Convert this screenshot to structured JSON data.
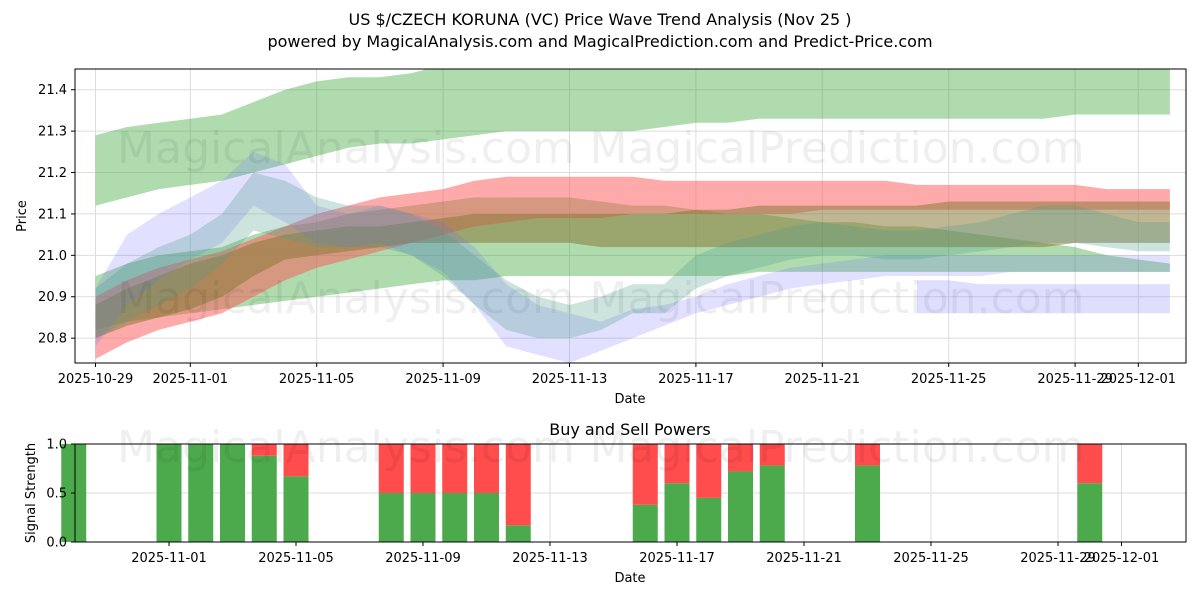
{
  "title": "US $/CZECH KORUNA (VC) Price Wave Trend Analysis (Nov 25 )",
  "subtitle": "powered by MagicalAnalysis.com and MagicalPrediction.com and Predict-Price.com",
  "watermarks": [
    "MagicalAnalysis.com",
    "MagicalPrediction.com"
  ],
  "chart_data": [
    {
      "type": "area",
      "title": "",
      "xlabel": "Date",
      "ylabel": "Price",
      "xlim": [
        "2025-10-28.6",
        "2025-12-02.7"
      ],
      "ylim": [
        20.74,
        21.45
      ],
      "xticks": [
        "2025-10-29",
        "2025-11-01",
        "2025-11-05",
        "2025-11-09",
        "2025-11-13",
        "2025-11-17",
        "2025-11-21",
        "2025-11-25",
        "2025-11-29",
        "2025-12-01"
      ],
      "yticks": [
        20.8,
        20.9,
        21.0,
        21.1,
        21.2,
        21.3,
        21.4
      ],
      "grid": true,
      "colors": {
        "green": "#2ca02c",
        "red": "#ff5555",
        "brown": "#8b7a3a",
        "blue": "#6a6aff",
        "teal": "#4a9a8a"
      },
      "series": [
        {
          "name": "green-upper",
          "color": "#2ca02c",
          "opacity": 0.38,
          "x": [
            0,
            1,
            2,
            3,
            4,
            5,
            6,
            7,
            8,
            9,
            10,
            11,
            12,
            13,
            14,
            15,
            16,
            17,
            18,
            19,
            20,
            21,
            22,
            23,
            24,
            25,
            26,
            27,
            28,
            29,
            30,
            31,
            32,
            33,
            34
          ],
          "upper": [
            21.29,
            21.31,
            21.32,
            21.33,
            21.34,
            21.37,
            21.4,
            21.42,
            21.43,
            21.43,
            21.44,
            21.46,
            21.47,
            21.47,
            21.47,
            21.47,
            21.47,
            21.47,
            21.47,
            21.47,
            21.47,
            21.47,
            21.47,
            21.47,
            21.47,
            21.47,
            21.47,
            21.47,
            21.47,
            21.47,
            21.47,
            21.47,
            21.46,
            21.45,
            21.45
          ],
          "lower": [
            21.12,
            21.14,
            21.16,
            21.17,
            21.18,
            21.2,
            21.22,
            21.24,
            21.26,
            21.27,
            21.27,
            21.28,
            21.29,
            21.3,
            21.3,
            21.3,
            21.3,
            21.3,
            21.31,
            21.32,
            21.32,
            21.33,
            21.33,
            21.33,
            21.33,
            21.33,
            21.33,
            21.33,
            21.33,
            21.33,
            21.33,
            21.34,
            21.34,
            21.34,
            21.34
          ]
        },
        {
          "name": "green-lower",
          "color": "#2ca02c",
          "opacity": 0.38,
          "x": [
            0,
            1,
            2,
            3,
            4,
            5,
            6,
            7,
            8,
            9,
            10,
            11,
            12,
            13,
            14,
            15,
            16,
            17,
            18,
            19,
            20,
            21,
            22,
            23,
            24,
            25,
            26,
            27,
            28,
            29,
            30,
            31,
            32,
            33,
            34
          ],
          "upper": [
            20.95,
            20.98,
            21.0,
            21.01,
            21.02,
            21.05,
            21.07,
            21.08,
            21.1,
            21.11,
            21.12,
            21.13,
            21.14,
            21.14,
            21.14,
            21.14,
            21.13,
            21.12,
            21.12,
            21.11,
            21.1,
            21.1,
            21.09,
            21.08,
            21.08,
            21.07,
            21.07,
            21.06,
            21.05,
            21.04,
            21.03,
            21.02,
            21.0,
            20.99,
            20.98
          ],
          "lower": [
            20.82,
            20.84,
            20.85,
            20.86,
            20.87,
            20.88,
            20.89,
            20.9,
            20.91,
            20.92,
            20.93,
            20.94,
            20.94,
            20.95,
            20.95,
            20.95,
            20.95,
            20.95,
            20.95,
            20.95,
            20.95,
            20.96,
            20.96,
            20.96,
            20.96,
            20.96,
            20.96,
            20.96,
            20.96,
            20.96,
            20.96,
            20.96,
            20.96,
            20.96,
            20.96
          ]
        },
        {
          "name": "red",
          "color": "#ff5555",
          "opacity": 0.5,
          "x": [
            0,
            1,
            2,
            3,
            4,
            5,
            6,
            7,
            8,
            9,
            10,
            11,
            12,
            13,
            14,
            15,
            16,
            17,
            18,
            19,
            20,
            21,
            22,
            23,
            24,
            25,
            26,
            27,
            28,
            29,
            30,
            31,
            32,
            33,
            34
          ],
          "upper": [
            20.9,
            20.94,
            20.97,
            20.99,
            21.01,
            21.04,
            21.07,
            21.1,
            21.12,
            21.14,
            21.15,
            21.16,
            21.18,
            21.19,
            21.19,
            21.19,
            21.19,
            21.19,
            21.18,
            21.18,
            21.18,
            21.18,
            21.18,
            21.18,
            21.18,
            21.18,
            21.17,
            21.17,
            21.17,
            21.17,
            21.17,
            21.17,
            21.16,
            21.16,
            21.16
          ],
          "lower": [
            20.75,
            20.79,
            20.82,
            20.84,
            20.86,
            20.9,
            20.94,
            20.97,
            20.99,
            21.01,
            21.03,
            21.05,
            21.07,
            21.08,
            21.09,
            21.09,
            21.09,
            21.1,
            21.1,
            21.1,
            21.1,
            21.1,
            21.1,
            21.11,
            21.11,
            21.11,
            21.11,
            21.11,
            21.11,
            21.11,
            21.11,
            21.11,
            21.11,
            21.11,
            21.11
          ]
        },
        {
          "name": "brown",
          "color": "#8b7a3a",
          "opacity": 0.55,
          "x": [
            0,
            1,
            2,
            3,
            4,
            5,
            6,
            7,
            8,
            9,
            10,
            11,
            12,
            13,
            14,
            15,
            16,
            17,
            18,
            19,
            20,
            21,
            22,
            23,
            24,
            25,
            26,
            27,
            28,
            29,
            30,
            31,
            32,
            33,
            34
          ],
          "upper": [
            20.88,
            20.92,
            20.95,
            20.98,
            21.0,
            21.03,
            21.05,
            21.06,
            21.07,
            21.07,
            21.08,
            21.09,
            21.1,
            21.1,
            21.1,
            21.1,
            21.1,
            21.1,
            21.1,
            21.11,
            21.11,
            21.12,
            21.12,
            21.12,
            21.12,
            21.12,
            21.12,
            21.13,
            21.13,
            21.13,
            21.13,
            21.13,
            21.13,
            21.13,
            21.13
          ],
          "lower": [
            20.8,
            20.83,
            20.85,
            20.87,
            20.9,
            20.95,
            20.99,
            21.0,
            21.01,
            21.02,
            21.03,
            21.03,
            21.03,
            21.03,
            21.03,
            21.03,
            21.02,
            21.02,
            21.02,
            21.02,
            21.02,
            21.02,
            21.02,
            21.02,
            21.02,
            21.02,
            21.02,
            21.02,
            21.02,
            21.02,
            21.02,
            21.03,
            21.03,
            21.03,
            21.03
          ]
        },
        {
          "name": "blue-wave",
          "color": "#6a6aff",
          "opacity": 0.2,
          "x": [
            0,
            1,
            2,
            3,
            4,
            5,
            6,
            7,
            8,
            9,
            10,
            11,
            12,
            13,
            14,
            15,
            16,
            17,
            18,
            19,
            20,
            21,
            22,
            23,
            24,
            25,
            26,
            27,
            28,
            29,
            30,
            31,
            32,
            33,
            34
          ],
          "upper": [
            20.92,
            21.05,
            21.1,
            21.14,
            21.18,
            21.25,
            21.22,
            21.12,
            21.1,
            21.12,
            21.1,
            21.08,
            21.02,
            20.93,
            20.88,
            20.86,
            20.84,
            20.87,
            20.88,
            20.9,
            20.93,
            20.95,
            20.97,
            20.98,
            20.99,
            21.0,
            21.0,
            21.0,
            21.0,
            21.0,
            21.0,
            21.0,
            21.0,
            21.0,
            21.0
          ],
          "lower": [
            20.78,
            20.88,
            20.94,
            20.99,
            21.03,
            21.12,
            21.08,
            21.03,
            21.02,
            21.03,
            21.0,
            20.96,
            20.88,
            20.78,
            20.76,
            20.74,
            20.77,
            20.8,
            20.83,
            20.86,
            20.88,
            20.9,
            20.92,
            20.93,
            20.94,
            20.95,
            20.95,
            20.95,
            20.95,
            20.96,
            20.96,
            20.96,
            20.96,
            20.96,
            20.96
          ]
        },
        {
          "name": "blue-flat",
          "color": "#6a6aff",
          "opacity": 0.22,
          "x": [
            26,
            27,
            28,
            29,
            30,
            31,
            32,
            33,
            34
          ],
          "upper": [
            20.94,
            20.94,
            20.93,
            20.93,
            20.93,
            20.93,
            20.93,
            20.93,
            20.93
          ],
          "lower": [
            20.86,
            20.86,
            20.86,
            20.86,
            20.86,
            20.86,
            20.86,
            20.86,
            20.86
          ]
        },
        {
          "name": "teal-wave",
          "color": "#4a9a8a",
          "opacity": 0.28,
          "x": [
            0,
            1,
            2,
            3,
            4,
            5,
            6,
            7,
            8,
            9,
            10,
            11,
            12,
            13,
            14,
            15,
            16,
            17,
            18,
            19,
            20,
            21,
            22,
            23,
            24,
            25,
            26,
            27,
            28,
            29,
            30,
            31,
            32,
            33,
            34
          ],
          "upper": [
            20.92,
            20.98,
            21.02,
            21.05,
            21.1,
            21.2,
            21.18,
            21.14,
            21.12,
            21.12,
            21.1,
            21.06,
            21.0,
            20.94,
            20.9,
            20.88,
            20.9,
            20.93,
            20.93,
            21.0,
            21.03,
            21.05,
            21.07,
            21.08,
            21.07,
            21.06,
            21.06,
            21.07,
            21.08,
            21.1,
            21.12,
            21.12,
            21.1,
            21.08,
            21.08
          ],
          "lower": [
            20.8,
            20.84,
            20.88,
            20.92,
            20.98,
            21.06,
            21.04,
            21.02,
            21.02,
            21.02,
            21.0,
            20.95,
            20.88,
            20.82,
            20.8,
            20.8,
            20.82,
            20.86,
            20.86,
            20.92,
            20.95,
            20.97,
            20.99,
            21.0,
            21.0,
            20.99,
            20.99,
            21.0,
            21.01,
            21.02,
            21.03,
            21.03,
            21.02,
            21.01,
            21.01
          ]
        }
      ]
    },
    {
      "type": "bar",
      "title": "Buy and Sell Powers",
      "xlabel": "Date",
      "ylabel": "Signal Strength",
      "ylim": [
        0,
        1.0
      ],
      "yticks": [
        "0.0",
        "0.5",
        "1.0"
      ],
      "xticks": [
        "2025-11-01",
        "2025-11-05",
        "2025-11-09",
        "2025-11-13",
        "2025-11-17",
        "2025-11-21",
        "2025-11-25",
        "2025-11-29",
        "2025-12-01"
      ],
      "grid": true,
      "colors": {
        "buy": "#4caa4c",
        "sell": "#ff4c4c"
      },
      "x": [
        1,
        4,
        5,
        6,
        7,
        8,
        11,
        12,
        13,
        14,
        15,
        19,
        20,
        21,
        22,
        23,
        26,
        33
      ],
      "buy": [
        1.0,
        1.0,
        1.0,
        1.0,
        0.88,
        0.67,
        0.5,
        0.5,
        0.5,
        0.5,
        0.17,
        0.38,
        0.6,
        0.45,
        0.72,
        0.78,
        0.78,
        0.6
      ],
      "sell": [
        0.0,
        0.0,
        0.0,
        0.0,
        0.12,
        0.33,
        0.5,
        0.5,
        0.5,
        0.5,
        0.83,
        0.62,
        0.4,
        0.55,
        0.28,
        0.22,
        0.22,
        0.4
      ]
    }
  ]
}
